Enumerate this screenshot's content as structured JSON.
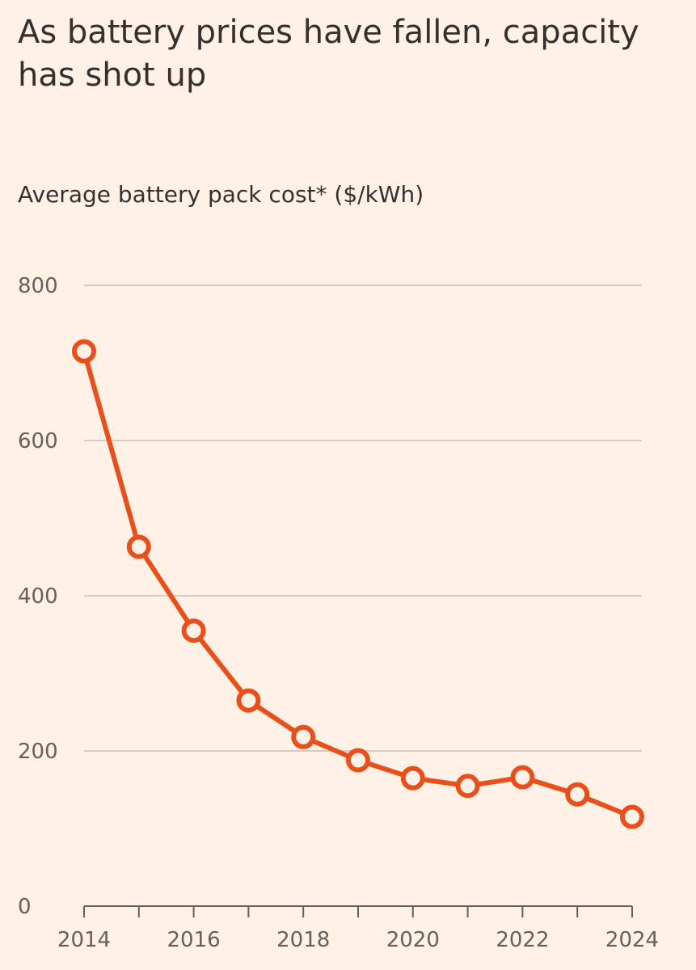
{
  "chart_data": {
    "type": "line",
    "title": "As battery prices have fallen, capacity has shot up",
    "ylabel": "Average battery pack cost* ($/kWh)",
    "xlabel": "",
    "x": [
      2014,
      2015,
      2016,
      2017,
      2018,
      2019,
      2020,
      2021,
      2022,
      2023,
      2024
    ],
    "series": [
      {
        "name": "Average battery pack cost",
        "values": [
          715,
          463,
          355,
          265,
          218,
          188,
          165,
          155,
          166,
          144,
          115
        ],
        "color": "#E84F1B"
      }
    ],
    "xlim": [
      2014,
      2024
    ],
    "ylim": [
      0,
      800
    ],
    "yticks": [
      0,
      200,
      400,
      600,
      800
    ],
    "xticks": [
      2014,
      2015,
      2016,
      2017,
      2018,
      2019,
      2020,
      2021,
      2022,
      2023,
      2024
    ],
    "xtick_labels": [
      "2014",
      "",
      "2016",
      "",
      "2018",
      "",
      "2020",
      "",
      "2022",
      "",
      "2024"
    ],
    "ytick_labels": [
      "0",
      "200",
      "400",
      "600",
      "800"
    ],
    "grid": true
  },
  "colors": {
    "background": "#FFF1E5",
    "grid": "#CCC1B7",
    "axis": "#66605C",
    "line": "#E84F1B"
  }
}
